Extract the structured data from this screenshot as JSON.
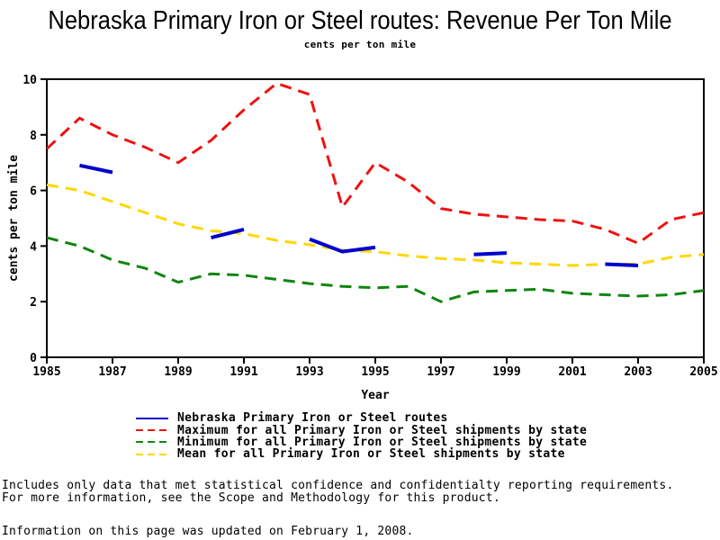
{
  "header": {
    "title": "Nebraska Primary Iron or Steel routes: Revenue Per Ton Mile",
    "subtitle": "cents per ton mile"
  },
  "chart_data": {
    "type": "line",
    "title": "Nebraska Primary Iron or Steel routes: Revenue Per Ton Mile",
    "subtitle": "cents per ton mile",
    "xlabel": "Year",
    "ylabel": "cents per ton mile",
    "xlim": [
      1985,
      2005
    ],
    "ylim": [
      0,
      10
    ],
    "x_ticks": [
      1985,
      1987,
      1989,
      1991,
      1993,
      1995,
      1997,
      1999,
      2001,
      2003,
      2005
    ],
    "y_ticks": [
      0,
      2,
      4,
      6,
      8,
      10
    ],
    "grid": false,
    "legend_position": "bottom",
    "x": [
      1985,
      1986,
      1987,
      1988,
      1989,
      1990,
      1991,
      1992,
      1993,
      1994,
      1995,
      1996,
      1997,
      1998,
      1999,
      2000,
      2001,
      2002,
      2003,
      2004,
      2005
    ],
    "series": [
      {
        "key": "nebraska",
        "name": "Nebraska Primary Iron or Steel routes",
        "color": "#0000cc",
        "line_style": "solid",
        "segments": [
          [
            [
              1986,
              6.9
            ],
            [
              1987,
              6.65
            ]
          ],
          [
            [
              1990,
              4.3
            ],
            [
              1991,
              4.6
            ]
          ],
          [
            [
              1993,
              4.25
            ],
            [
              1994,
              3.8
            ],
            [
              1995,
              3.95
            ]
          ],
          [
            [
              1998,
              3.7
            ],
            [
              1999,
              3.75
            ]
          ],
          [
            [
              2002,
              3.35
            ],
            [
              2003,
              3.3
            ]
          ]
        ]
      },
      {
        "key": "maximum",
        "name": "Maximum for all Primary Iron or Steel shipments by state",
        "color": "#ee1111",
        "line_style": "dashed",
        "values": [
          7.5,
          8.6,
          8.0,
          7.55,
          7.0,
          7.8,
          8.9,
          9.85,
          9.45,
          5.4,
          7.0,
          6.3,
          5.35,
          5.15,
          5.05,
          4.95,
          4.9,
          4.6,
          4.1,
          4.95,
          5.2
        ]
      },
      {
        "key": "minimum",
        "name": "Minimum for all Primary Iron or Steel shipments by state",
        "color": "#0f850f",
        "line_style": "dashed",
        "values": [
          4.3,
          4.0,
          3.5,
          3.2,
          2.7,
          3.0,
          2.95,
          2.8,
          2.65,
          2.55,
          2.5,
          2.55,
          2.0,
          2.35,
          2.4,
          2.45,
          2.3,
          2.25,
          2.2,
          2.25,
          2.4
        ]
      },
      {
        "key": "mean",
        "name": "Mean for all Primary Iron or Steel shipments by state",
        "color": "#ffd700",
        "line_style": "dashed",
        "values": [
          6.2,
          6.0,
          5.6,
          5.2,
          4.8,
          4.55,
          4.45,
          4.2,
          4.05,
          3.85,
          3.8,
          3.65,
          3.55,
          3.5,
          3.4,
          3.35,
          3.3,
          3.35,
          3.35,
          3.6,
          3.7
        ]
      }
    ]
  },
  "legend": {
    "items": [
      {
        "label": "Nebraska Primary Iron or Steel routes"
      },
      {
        "label": "Maximum for all Primary Iron or Steel shipments by state"
      },
      {
        "label": "Minimum for all Primary Iron or Steel shipments by state"
      },
      {
        "label": "Mean for all Primary Iron or Steel shipments by state"
      }
    ]
  },
  "footnotes": {
    "line1": "Includes only data that met statistical confidence and confidentialty reporting requirements.",
    "line2": "For more information, see the Scope and Methodology for this product.",
    "updated": "Information on this page was updated on February 1, 2008."
  }
}
